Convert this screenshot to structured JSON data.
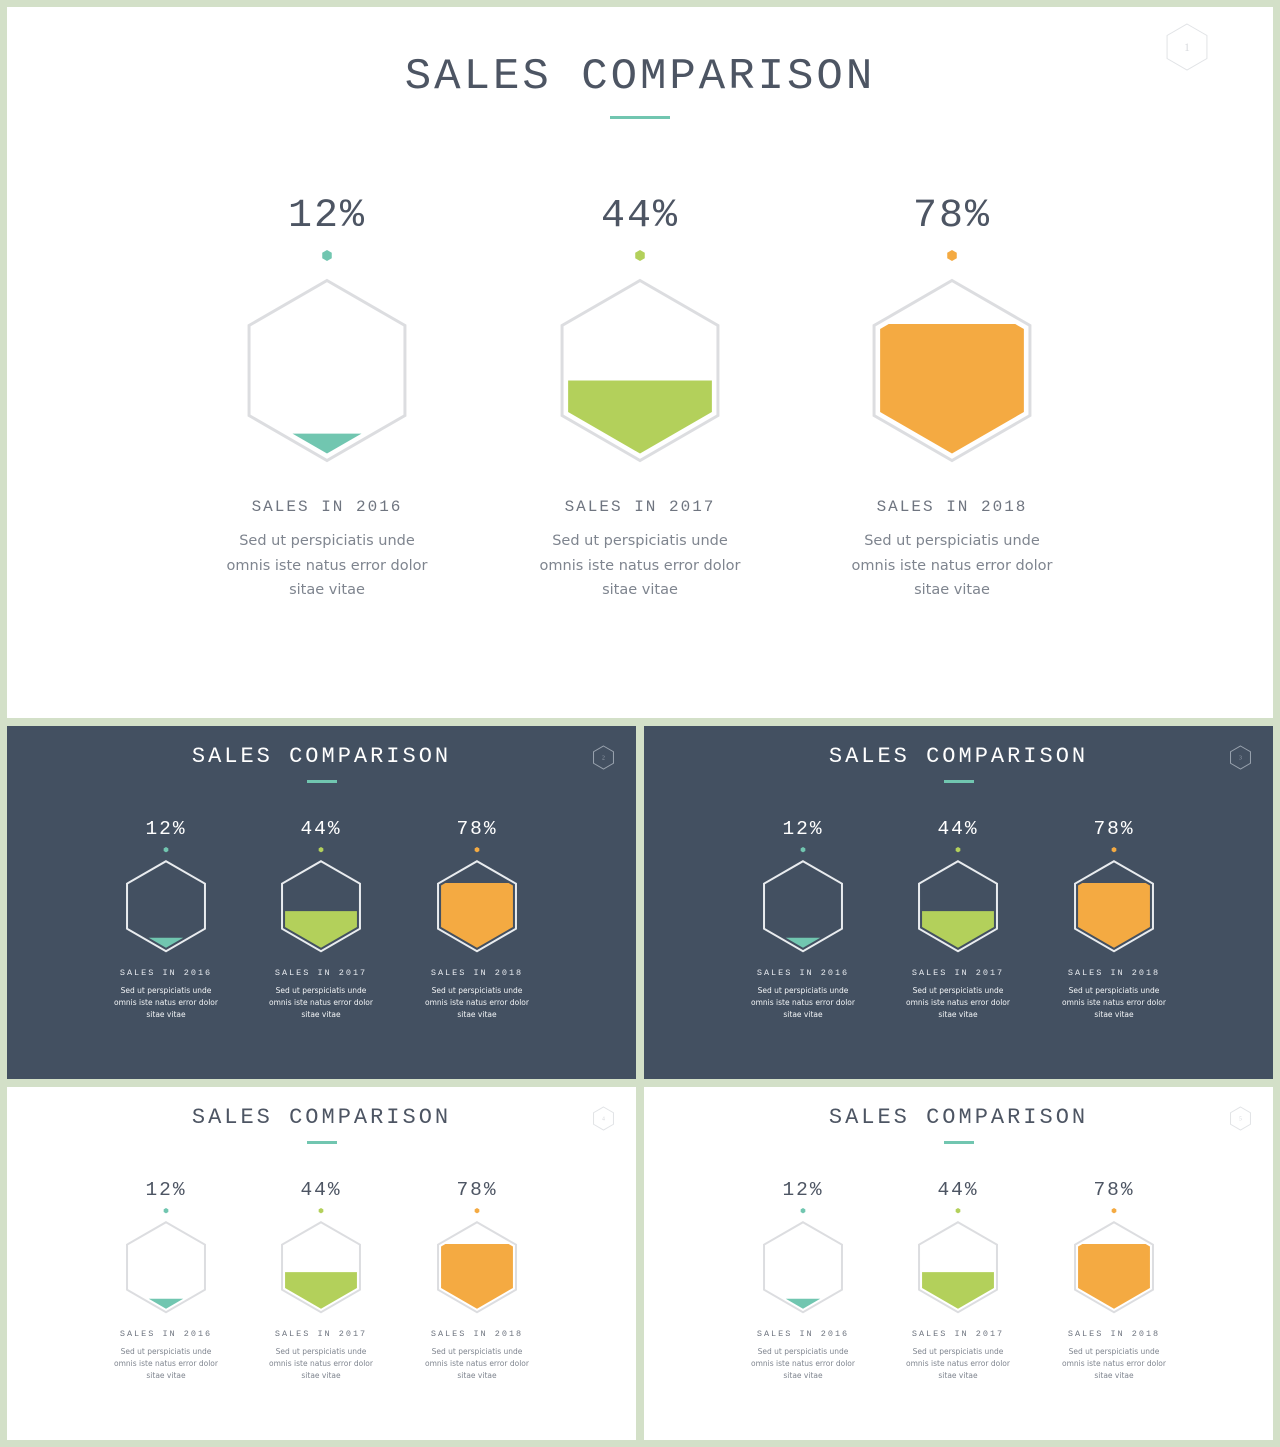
{
  "colors": {
    "teal": "#71c6b0",
    "green": "#b3d05b",
    "orange": "#f4aa42",
    "slate": "#435061",
    "frame": "#d3e0c8"
  },
  "slides": [
    {
      "theme": "light",
      "title": "SALES COMPARISON",
      "page_number": "1",
      "items": [
        {
          "percent": "12%",
          "value": 12,
          "color": "teal",
          "caption": "SALES IN 2016",
          "desc_lines": [
            "Sed ut perspiciatis unde",
            "omnis iste natus error dolor",
            "sitae vitae"
          ]
        },
        {
          "percent": "44%",
          "value": 44,
          "color": "green",
          "caption": "SALES IN 2017",
          "desc_lines": [
            "Sed ut perspiciatis unde",
            "omnis iste natus error dolor",
            "sitae vitae"
          ]
        },
        {
          "percent": "78%",
          "value": 78,
          "color": "orange",
          "caption": "SALES IN 2018",
          "desc_lines": [
            "Sed ut perspiciatis unde",
            "omnis iste natus error dolor",
            "sitae vitae"
          ]
        }
      ]
    },
    {
      "theme": "dark",
      "title": "SALES COMPARISON",
      "page_number": "2",
      "items": [
        {
          "percent": "12%",
          "value": 12,
          "color": "teal",
          "caption": "SALES IN 2016",
          "desc_lines": [
            "Sed ut perspiciatis unde",
            "omnis iste natus error dolor",
            "sitae vitae"
          ]
        },
        {
          "percent": "44%",
          "value": 44,
          "color": "green",
          "caption": "SALES IN 2017",
          "desc_lines": [
            "Sed ut perspiciatis unde",
            "omnis iste natus error dolor",
            "sitae vitae"
          ]
        },
        {
          "percent": "78%",
          "value": 78,
          "color": "orange",
          "caption": "SALES IN 2018",
          "desc_lines": [
            "Sed ut perspiciatis unde",
            "omnis iste natus error dolor",
            "sitae vitae"
          ]
        }
      ]
    },
    {
      "theme": "dark",
      "title": "SALES COMPARISON",
      "page_number": "3",
      "items": [
        {
          "percent": "12%",
          "value": 12,
          "color": "teal",
          "caption": "SALES IN 2016",
          "desc_lines": [
            "Sed ut perspiciatis unde",
            "omnis iste natus error dolor",
            "sitae vitae"
          ]
        },
        {
          "percent": "44%",
          "value": 44,
          "color": "green",
          "caption": "SALES IN 2017",
          "desc_lines": [
            "Sed ut perspiciatis unde",
            "omnis iste natus error dolor",
            "sitae vitae"
          ]
        },
        {
          "percent": "78%",
          "value": 78,
          "color": "orange",
          "caption": "SALES IN 2018",
          "desc_lines": [
            "Sed ut perspiciatis unde",
            "omnis iste natus error dolor",
            "sitae vitae"
          ]
        }
      ]
    },
    {
      "theme": "light",
      "title": "SALES COMPARISON",
      "page_number": "4",
      "items": [
        {
          "percent": "12%",
          "value": 12,
          "color": "teal",
          "caption": "SALES IN 2016",
          "desc_lines": [
            "Sed ut perspiciatis unde",
            "omnis iste natus error dolor",
            "sitae vitae"
          ]
        },
        {
          "percent": "44%",
          "value": 44,
          "color": "green",
          "caption": "SALES IN 2017",
          "desc_lines": [
            "Sed ut perspiciatis unde",
            "omnis iste natus error dolor",
            "sitae vitae"
          ]
        },
        {
          "percent": "78%",
          "value": 78,
          "color": "orange",
          "caption": "SALES IN 2018",
          "desc_lines": [
            "Sed ut perspiciatis unde",
            "omnis iste natus error dolor",
            "sitae vitae"
          ]
        }
      ]
    },
    {
      "theme": "light",
      "title": "SALES COMPARISON",
      "page_number": "5",
      "items": [
        {
          "percent": "12%",
          "value": 12,
          "color": "teal",
          "caption": "SALES IN 2016",
          "desc_lines": [
            "Sed ut perspiciatis unde",
            "omnis iste natus error dolor",
            "sitae vitae"
          ]
        },
        {
          "percent": "44%",
          "value": 44,
          "color": "green",
          "caption": "SALES IN 2017",
          "desc_lines": [
            "Sed ut perspiciatis unde",
            "omnis iste natus error dolor",
            "sitae vitae"
          ]
        },
        {
          "percent": "78%",
          "value": 78,
          "color": "orange",
          "caption": "SALES IN 2018",
          "desc_lines": [
            "Sed ut perspiciatis unde",
            "omnis iste natus error dolor",
            "sitae vitae"
          ]
        }
      ]
    }
  ]
}
